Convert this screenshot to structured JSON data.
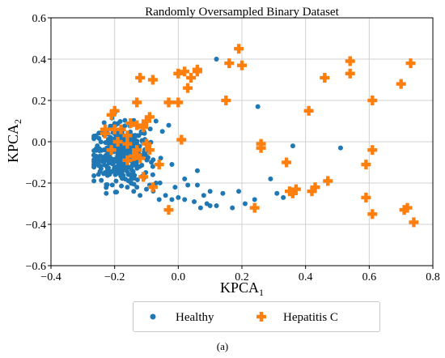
{
  "chart_data": {
    "type": "scatter",
    "title": "Randomly Oversampled Binary Dataset",
    "xlabel_main": "KPCA",
    "xlabel_sub": "1",
    "ylabel_main": "KPCA",
    "ylabel_sub": "2",
    "xlim": [
      -0.4,
      0.8
    ],
    "ylim": [
      -0.6,
      0.6
    ],
    "xticks": [
      "−0.4",
      "−0.2",
      "0.0",
      "0.2",
      "0.4",
      "0.6",
      "0.8"
    ],
    "yticks": [
      "−0.6",
      "−0.4",
      "−0.2",
      "0.0",
      "0.2",
      "0.4",
      "0.6"
    ],
    "xtick_values": [
      -0.4,
      -0.2,
      0.0,
      0.2,
      0.4,
      0.6,
      0.8
    ],
    "ytick_values": [
      -0.6,
      -0.4,
      -0.2,
      0.0,
      0.2,
      0.4,
      0.6
    ],
    "grid": true,
    "legend_position": "bottom-outside",
    "series": [
      {
        "name": "Healthy",
        "marker": "circle",
        "color": "#1f77b4",
        "cluster": {
          "center": [
            -0.18,
            -0.06
          ],
          "spread": [
            0.045,
            0.07
          ],
          "count": 420
        },
        "points": [
          [
            0.12,
            0.4
          ],
          [
            0.25,
            0.17
          ],
          [
            0.36,
            -0.02
          ],
          [
            0.51,
            -0.03
          ],
          [
            0.29,
            -0.18
          ],
          [
            0.37,
            -0.23
          ],
          [
            0.31,
            -0.25
          ],
          [
            0.33,
            -0.27
          ],
          [
            0.24,
            -0.28
          ],
          [
            0.19,
            -0.24
          ],
          [
            0.21,
            -0.3
          ],
          [
            0.17,
            -0.32
          ],
          [
            0.12,
            -0.31
          ],
          [
            0.1,
            -0.31
          ],
          [
            0.09,
            -0.3
          ],
          [
            0.07,
            -0.32
          ],
          [
            0.05,
            -0.29
          ],
          [
            0.02,
            -0.28
          ],
          [
            0.0,
            -0.27
          ],
          [
            -0.02,
            -0.28
          ],
          [
            -0.04,
            -0.26
          ],
          [
            -0.06,
            -0.28
          ],
          [
            -0.01,
            -0.22
          ],
          [
            0.03,
            -0.21
          ],
          [
            0.06,
            -0.21
          ],
          [
            0.02,
            -0.18
          ],
          [
            0.06,
            -0.14
          ],
          [
            -0.02,
            -0.11
          ],
          [
            -0.03,
            0.08
          ],
          [
            -0.07,
            0.1
          ],
          [
            -0.05,
            0.05
          ],
          [
            -0.08,
            -0.12
          ],
          [
            -0.11,
            -0.17
          ],
          [
            -0.09,
            -0.21
          ],
          [
            -0.14,
            -0.24
          ],
          [
            -0.13,
            -0.22
          ],
          [
            0.14,
            -0.25
          ],
          [
            0.1,
            -0.24
          ],
          [
            0.08,
            -0.26
          ],
          [
            -0.12,
            -0.26
          ],
          [
            -0.16,
            -0.22
          ],
          [
            -0.1,
            -0.23
          ],
          [
            -0.07,
            -0.2
          ],
          [
            -0.08,
            -0.16
          ]
        ]
      },
      {
        "name": "Hepatitis C",
        "marker": "plus",
        "color": "#ff7f0e",
        "points": [
          [
            0.19,
            0.45
          ],
          [
            0.16,
            0.38
          ],
          [
            0.2,
            0.37
          ],
          [
            0.54,
            0.39
          ],
          [
            0.73,
            0.38
          ],
          [
            0.02,
            0.34
          ],
          [
            0.06,
            0.35
          ],
          [
            0.06,
            0.34
          ],
          [
            0.0,
            0.33
          ],
          [
            0.04,
            0.31
          ],
          [
            0.46,
            0.31
          ],
          [
            0.54,
            0.33
          ],
          [
            0.7,
            0.28
          ],
          [
            -0.12,
            0.31
          ],
          [
            -0.08,
            0.3
          ],
          [
            0.03,
            0.26
          ],
          [
            0.15,
            0.2
          ],
          [
            0.0,
            0.19
          ],
          [
            -0.03,
            0.19
          ],
          [
            -0.13,
            0.19
          ],
          [
            0.61,
            0.2
          ],
          [
            0.41,
            0.15
          ],
          [
            -0.2,
            0.15
          ],
          [
            -0.21,
            0.13
          ],
          [
            -0.09,
            0.12
          ],
          [
            -0.1,
            0.1
          ],
          [
            -0.11,
            0.07
          ],
          [
            -0.13,
            0.08
          ],
          [
            -0.15,
            0.09
          ],
          [
            -0.16,
            0.03
          ],
          [
            -0.18,
            0.06
          ],
          [
            -0.2,
            0.06
          ],
          [
            -0.23,
            0.06
          ],
          [
            -0.23,
            0.04
          ],
          [
            -0.19,
            0.0
          ],
          [
            -0.16,
            -0.01
          ],
          [
            -0.13,
            -0.04
          ],
          [
            -0.09,
            -0.04
          ],
          [
            -0.1,
            -0.01
          ],
          [
            -0.21,
            -0.04
          ],
          [
            -0.14,
            -0.07
          ],
          [
            -0.12,
            -0.08
          ],
          [
            -0.06,
            -0.11
          ],
          [
            0.01,
            0.01
          ],
          [
            0.26,
            -0.01
          ],
          [
            0.26,
            -0.03
          ],
          [
            0.61,
            -0.04
          ],
          [
            0.59,
            -0.11
          ],
          [
            0.34,
            -0.1
          ],
          [
            0.47,
            -0.19
          ],
          [
            0.43,
            -0.22
          ],
          [
            0.42,
            -0.24
          ],
          [
            0.37,
            -0.23
          ],
          [
            0.35,
            -0.24
          ],
          [
            0.36,
            -0.25
          ],
          [
            0.59,
            -0.27
          ],
          [
            0.61,
            -0.35
          ],
          [
            0.71,
            -0.33
          ],
          [
            0.72,
            -0.32
          ],
          [
            0.74,
            -0.39
          ],
          [
            0.24,
            -0.32
          ],
          [
            -0.03,
            -0.33
          ],
          [
            -0.08,
            -0.22
          ],
          [
            -0.11,
            -0.17
          ],
          [
            -0.16,
            -0.09
          ]
        ]
      }
    ]
  },
  "caption": "(a)"
}
